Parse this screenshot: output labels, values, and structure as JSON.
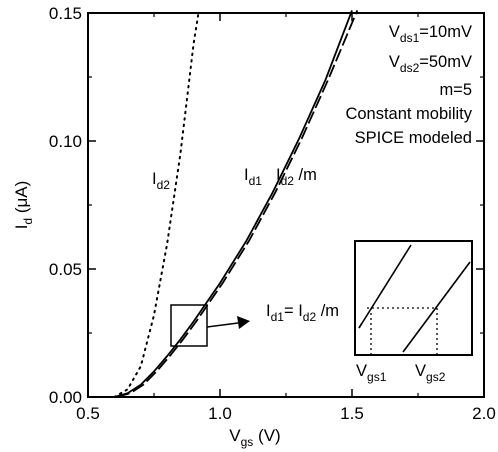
{
  "chart_data": {
    "type": "line",
    "xlabel": {
      "main": "V",
      "sub": "gs",
      "unit": " (V)"
    },
    "ylabel": {
      "main": "I",
      "sub": "d",
      "unit": " (μA)"
    },
    "xlim": [
      0.5,
      2.0
    ],
    "ylim": [
      0.0,
      0.15
    ],
    "xticks": [
      "0.5",
      "1.0",
      "1.5",
      "2.0"
    ],
    "yticks": [
      "0.00",
      "0.05",
      "0.10",
      "0.15"
    ],
    "grid": false,
    "series": [
      {
        "name": "Id1",
        "style": "solid",
        "x": [
          0.6,
          0.65,
          0.7,
          0.75,
          0.8,
          0.85,
          0.9,
          0.95,
          1.0,
          1.1,
          1.2,
          1.3,
          1.4,
          1.5
        ],
        "y": [
          0.0,
          0.0015,
          0.0048,
          0.01,
          0.016,
          0.0225,
          0.0295,
          0.037,
          0.0445,
          0.061,
          0.08,
          0.101,
          0.124,
          0.151
        ]
      },
      {
        "name": "Id2/m",
        "style": "dashed",
        "x": [
          0.61,
          0.66,
          0.71,
          0.76,
          0.81,
          0.86,
          0.91,
          0.96,
          1.01,
          1.11,
          1.21,
          1.31,
          1.41,
          1.52
        ],
        "y": [
          0.0,
          0.0015,
          0.0048,
          0.01,
          0.016,
          0.0225,
          0.0295,
          0.037,
          0.0445,
          0.061,
          0.08,
          0.101,
          0.124,
          0.151
        ]
      },
      {
        "name": "Id2",
        "style": "dotted",
        "x": [
          0.6,
          0.65,
          0.7,
          0.75,
          0.8,
          0.85,
          0.9,
          0.92
        ],
        "y": [
          0.0,
          0.003,
          0.012,
          0.032,
          0.06,
          0.095,
          0.138,
          0.151
        ]
      }
    ],
    "annotations": {
      "legend_lines": [
        {
          "main": "V",
          "sub": "ds1",
          "rest": "=10mV"
        },
        {
          "main": "V",
          "sub": "ds2",
          "rest": "=50mV"
        },
        {
          "text": "m=5"
        },
        {
          "text": "Constant mobility"
        },
        {
          "text": "SPICE modeled"
        }
      ],
      "curve_labels": {
        "id2": {
          "main": "I",
          "sub": "d2"
        },
        "id1": {
          "main": "I",
          "sub": "d1"
        },
        "id2m": {
          "main": "I",
          "sub": "d2",
          "rest": " /m"
        }
      },
      "inset": {
        "eq_left": {
          "main": "I",
          "sub": "d1",
          "rest": "= "
        },
        "eq_right": {
          "main": "I",
          "sub": "d2",
          "rest": " /m"
        },
        "vgs1": {
          "main": "V",
          "sub": "gs1"
        },
        "vgs2": {
          "main": "V",
          "sub": "gs2"
        }
      }
    }
  }
}
